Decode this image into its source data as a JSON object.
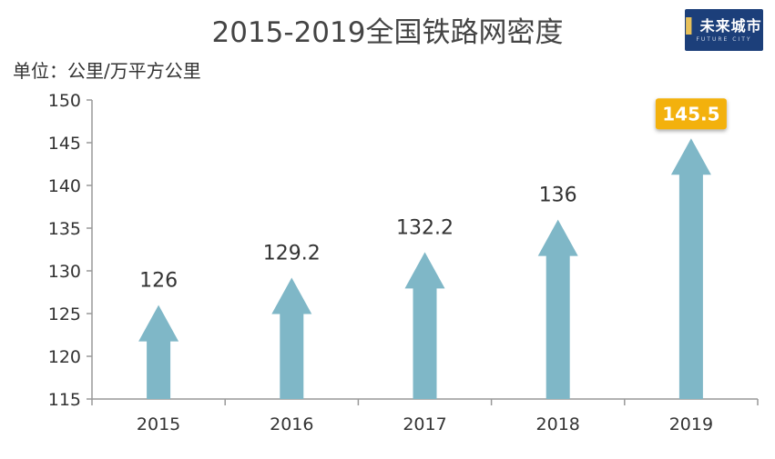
{
  "title": "2015-2019全国铁路网密度",
  "unit_label": "单位：公里/万平方公里",
  "logo": {
    "text": "未来城市",
    "sub": "FUTURE CITY"
  },
  "colors": {
    "arrow": "#7fb7c7",
    "axis": "#999999",
    "highlight_bg": "#f3b10b",
    "highlight_text": "#ffffff"
  },
  "chart_data": {
    "type": "bar",
    "mark_shape": "arrow",
    "categories": [
      "2015",
      "2016",
      "2017",
      "2018",
      "2019"
    ],
    "values": [
      126,
      129.2,
      132.2,
      136,
      145.5
    ],
    "data_labels": [
      "126",
      "129.2",
      "132.2",
      "136",
      "145.5"
    ],
    "highlight_index": 4,
    "title": "2015-2019全国铁路网密度",
    "xlabel": "",
    "ylabel": "单位：公里/万平方公里",
    "ylim": [
      115,
      150
    ],
    "yticks": [
      115,
      120,
      125,
      130,
      135,
      140,
      145,
      150
    ],
    "ytick_labels": [
      "115",
      "120",
      "125",
      "130",
      "135",
      "140",
      "145",
      "150"
    ],
    "grid": false,
    "legend": "none"
  }
}
